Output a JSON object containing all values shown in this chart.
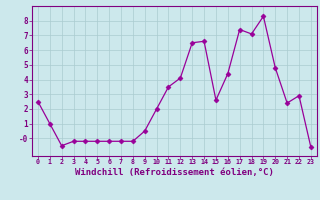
{
  "x": [
    0,
    1,
    2,
    3,
    4,
    5,
    6,
    7,
    8,
    9,
    10,
    11,
    12,
    13,
    14,
    15,
    16,
    17,
    18,
    19,
    20,
    21,
    22,
    23
  ],
  "y": [
    2.5,
    1.0,
    -0.5,
    -0.2,
    -0.2,
    -0.2,
    -0.2,
    -0.2,
    -0.2,
    0.5,
    2.0,
    3.5,
    4.1,
    6.5,
    6.6,
    2.6,
    4.4,
    7.4,
    7.1,
    8.3,
    4.8,
    2.4,
    2.9,
    -0.6
  ],
  "line_color": "#990099",
  "marker": "D",
  "marker_size": 2.5,
  "linewidth": 0.9,
  "xlabel": "Windchill (Refroidissement éolien,°C)",
  "xlabel_fontsize": 6.5,
  "xtick_labels": [
    "0",
    "1",
    "2",
    "3",
    "4",
    "5",
    "6",
    "7",
    "8",
    "9",
    "10",
    "11",
    "12",
    "13",
    "14",
    "15",
    "16",
    "17",
    "18",
    "19",
    "20",
    "21",
    "22",
    "23"
  ],
  "ytick_values": [
    0,
    1,
    2,
    3,
    4,
    5,
    6,
    7,
    8
  ],
  "ylim": [
    -1.2,
    9.0
  ],
  "xlim": [
    -0.5,
    23.5
  ],
  "bg_color": "#cce8ec",
  "grid_color": "#aaccd0",
  "spine_color": "#800080",
  "tick_color": "#800080",
  "label_color": "#800080"
}
